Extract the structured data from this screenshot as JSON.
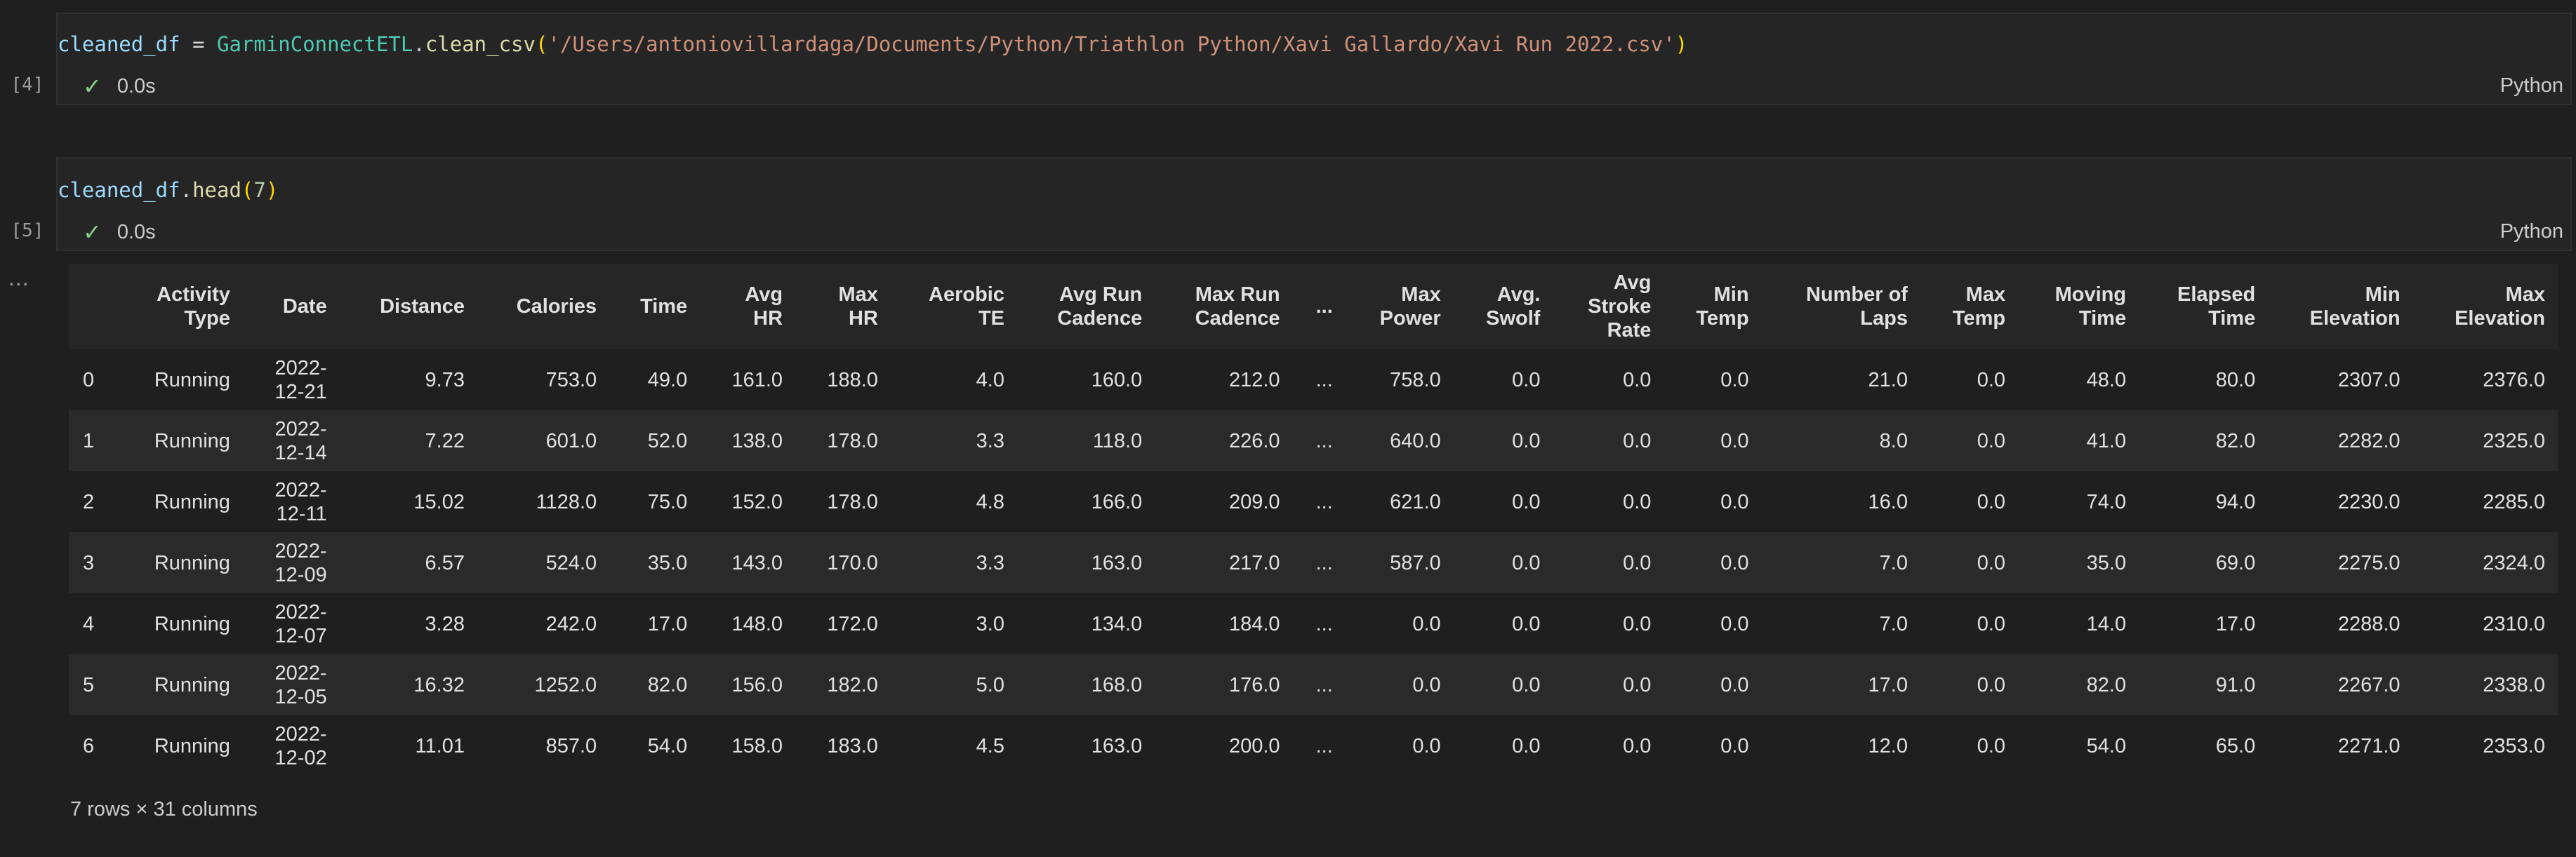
{
  "cells": [
    {
      "exec_count": "[4]",
      "code": {
        "var": "cleaned_df",
        "op": " = ",
        "cls": "GarminConnectETL",
        "dot": ".",
        "fn": "clean_csv",
        "open": "(",
        "arg": "'/Users/antoniovillardaga/Documents/Python/Triathlon Python/Xavi Gallardo/Xavi Run 2022.csv'",
        "close": ")"
      },
      "status_time": "0.0s",
      "language": "Python"
    },
    {
      "exec_count": "[5]",
      "code": {
        "var": "cleaned_df",
        "dot": ".",
        "fn": "head",
        "open": "(",
        "arg": "7",
        "close": ")"
      },
      "status_time": "0.0s",
      "language": "Python"
    }
  ],
  "output_menu": "...",
  "table": {
    "columns": [
      [
        "Activity",
        "Type"
      ],
      [
        "",
        "Date"
      ],
      [
        "",
        "Distance"
      ],
      [
        "",
        "Calories"
      ],
      [
        "",
        "Time"
      ],
      [
        "Avg",
        "HR"
      ],
      [
        "Max",
        "HR"
      ],
      [
        "Aerobic",
        "TE"
      ],
      [
        "Avg Run",
        "Cadence"
      ],
      [
        "Max Run",
        "Cadence"
      ],
      [
        "",
        "..."
      ],
      [
        "Max",
        "Power"
      ],
      [
        "Avg.",
        "Swolf"
      ],
      [
        "Avg",
        "Stroke",
        "Rate"
      ],
      [
        "Min",
        "Temp"
      ],
      [
        "Number of",
        "Laps"
      ],
      [
        "Max",
        "Temp"
      ],
      [
        "Moving",
        "Time"
      ],
      [
        "Elapsed",
        "Time"
      ],
      [
        "Min",
        "Elevation"
      ],
      [
        "Max",
        "Elevation"
      ]
    ],
    "rows": [
      {
        "index": "0",
        "cells": [
          "Running",
          "2022-|12-21",
          "9.73",
          "753.0",
          "49.0",
          "161.0",
          "188.0",
          "4.0",
          "160.0",
          "212.0",
          "...",
          "758.0",
          "0.0",
          "0.0",
          "0.0",
          "21.0",
          "0.0",
          "48.0",
          "80.0",
          "2307.0",
          "2376.0"
        ]
      },
      {
        "index": "1",
        "cells": [
          "Running",
          "2022-|12-14",
          "7.22",
          "601.0",
          "52.0",
          "138.0",
          "178.0",
          "3.3",
          "118.0",
          "226.0",
          "...",
          "640.0",
          "0.0",
          "0.0",
          "0.0",
          "8.0",
          "0.0",
          "41.0",
          "82.0",
          "2282.0",
          "2325.0"
        ]
      },
      {
        "index": "2",
        "cells": [
          "Running",
          "2022-|12-11",
          "15.02",
          "1128.0",
          "75.0",
          "152.0",
          "178.0",
          "4.8",
          "166.0",
          "209.0",
          "...",
          "621.0",
          "0.0",
          "0.0",
          "0.0",
          "16.0",
          "0.0",
          "74.0",
          "94.0",
          "2230.0",
          "2285.0"
        ]
      },
      {
        "index": "3",
        "cells": [
          "Running",
          "2022-|12-09",
          "6.57",
          "524.0",
          "35.0",
          "143.0",
          "170.0",
          "3.3",
          "163.0",
          "217.0",
          "...",
          "587.0",
          "0.0",
          "0.0",
          "0.0",
          "7.0",
          "0.0",
          "35.0",
          "69.0",
          "2275.0",
          "2324.0"
        ]
      },
      {
        "index": "4",
        "cells": [
          "Running",
          "2022-|12-07",
          "3.28",
          "242.0",
          "17.0",
          "148.0",
          "172.0",
          "3.0",
          "134.0",
          "184.0",
          "...",
          "0.0",
          "0.0",
          "0.0",
          "0.0",
          "7.0",
          "0.0",
          "14.0",
          "17.0",
          "2288.0",
          "2310.0"
        ]
      },
      {
        "index": "5",
        "cells": [
          "Running",
          "2022-|12-05",
          "16.32",
          "1252.0",
          "82.0",
          "156.0",
          "182.0",
          "5.0",
          "168.0",
          "176.0",
          "...",
          "0.0",
          "0.0",
          "0.0",
          "0.0",
          "17.0",
          "0.0",
          "82.0",
          "91.0",
          "2267.0",
          "2338.0"
        ]
      },
      {
        "index": "6",
        "cells": [
          "Running",
          "2022-|12-02",
          "11.01",
          "857.0",
          "54.0",
          "158.0",
          "183.0",
          "4.5",
          "163.0",
          "200.0",
          "...",
          "0.0",
          "0.0",
          "0.0",
          "0.0",
          "12.0",
          "0.0",
          "54.0",
          "65.0",
          "2271.0",
          "2353.0"
        ]
      }
    ],
    "summary": "7 rows × 31 columns"
  }
}
